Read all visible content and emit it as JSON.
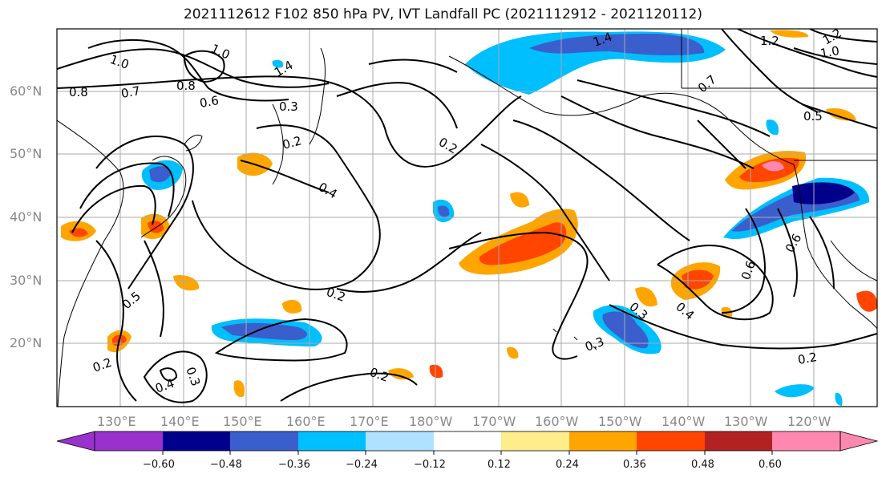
{
  "title": "2021112612 F102 850 hPa PV, IVT Landfall PC (2021112912 - 2021120112)",
  "lat_labels": [
    "60°N",
    "50°N",
    "40°N",
    "30°N",
    "20°N"
  ],
  "lon_labels": [
    "130°E",
    "140°E",
    "150°E",
    "160°E",
    "170°E",
    "180°W",
    "170°W",
    "160°W",
    "150°W",
    "140°W",
    "130°W",
    "120°W"
  ],
  "colorbar": {
    "ticks": [
      "−0.60",
      "−0.48",
      "−0.36",
      "−0.24",
      "−0.12",
      "0.12",
      "0.24",
      "0.36",
      "0.48",
      "0.60"
    ],
    "colors": [
      "#9932cc",
      "#00008b",
      "#3a5fcd",
      "#00bfff",
      "#b0e2ff",
      "#ffffff",
      "#ffec8b",
      "#ffa500",
      "#ff4500",
      "#b22222",
      "#ff88b0"
    ]
  },
  "contour_labels": [
    "1.0",
    "1.0",
    "0.8",
    "0.8",
    "0.7",
    "1.4",
    "1.2",
    "1.4",
    "1.2",
    "1.0",
    "0.6",
    "0.3",
    "0.2",
    "0.2",
    "0.4",
    "0.2",
    "0.5",
    "0.2",
    "0.3",
    "0.4",
    "0.2",
    "0.3",
    "0.3",
    "0.4",
    "0.6",
    "0.6",
    "0.2",
    "0.5",
    "0.7"
  ]
}
